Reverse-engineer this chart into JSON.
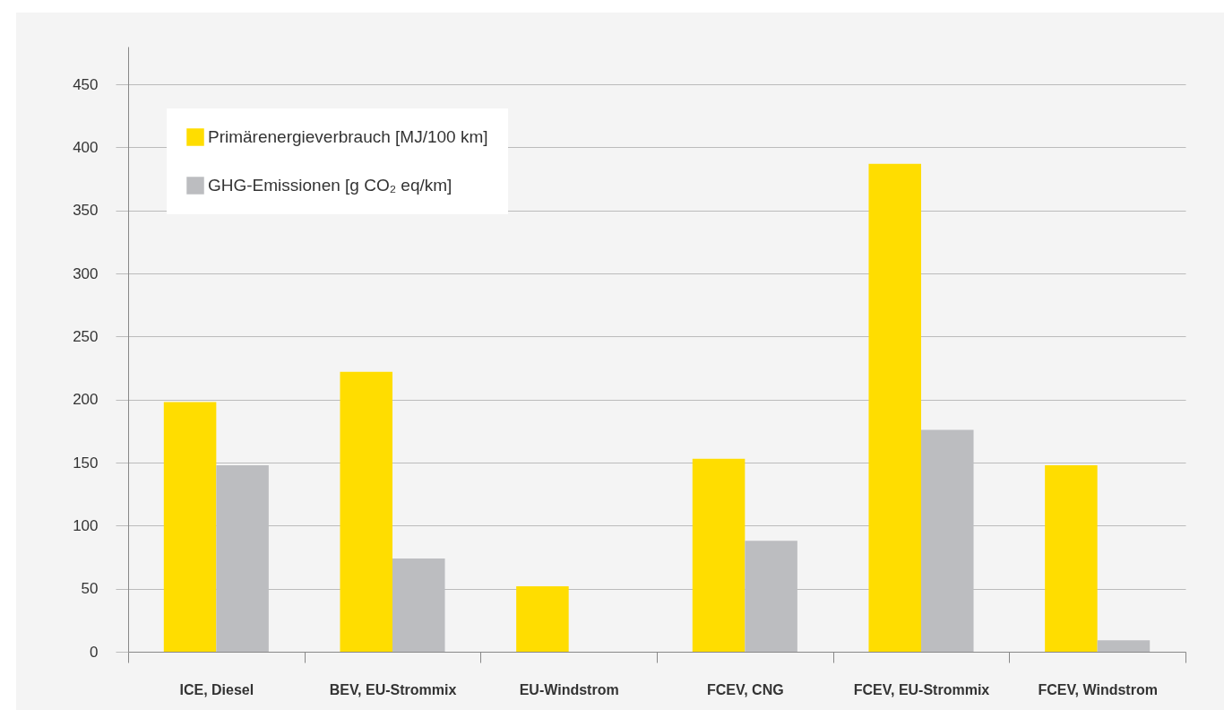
{
  "chart_data": {
    "type": "bar",
    "categories": [
      "ICE, Diesel",
      "BEV, EU-Strommix",
      "EU-Windstrom",
      "FCEV, CNG",
      "FCEV, EU-Strommix",
      "FCEV, Windstrom"
    ],
    "series": [
      {
        "name": "Primärenergieverbrauch [MJ/100 km]",
        "color": "#ffdd00",
        "values": [
          198,
          222,
          52,
          153,
          387,
          148
        ]
      },
      {
        "name": "GHG-Emissionen [g CO₂ eq/km]",
        "color": "#bcbdc0",
        "values": [
          148,
          74,
          0,
          88,
          176,
          9
        ]
      }
    ],
    "ylim": [
      0,
      480
    ],
    "yticks": [
      0,
      50,
      100,
      150,
      200,
      250,
      300,
      350,
      400,
      450
    ],
    "grid": "y",
    "legend": "top left"
  }
}
